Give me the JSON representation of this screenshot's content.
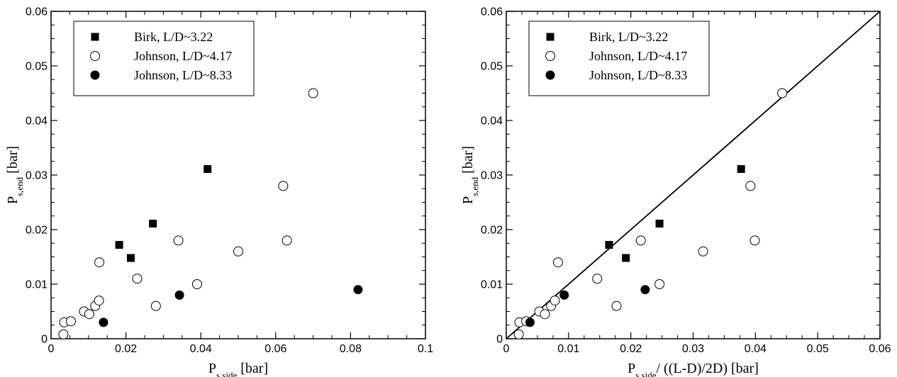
{
  "chart_data": [
    {
      "type": "scatter",
      "xlabel": {
        "base": "P",
        "sub": "s,side",
        "rest": " [bar]"
      },
      "ylabel": {
        "base": "P",
        "sub": "s,end",
        "rest": " [bar]"
      },
      "xlim": [
        0,
        0.1
      ],
      "ylim": [
        0,
        0.06
      ],
      "xticks": [
        "0",
        "0.02",
        "0.04",
        "0.06",
        "0.08",
        "0.1"
      ],
      "yticks": [
        "0",
        "0.01",
        "0.02",
        "0.03",
        "0.04",
        "0.05",
        "0.06"
      ],
      "legend_position": "top-left",
      "series": [
        {
          "name": "Birk, L/D~3.22",
          "marker": "square-filled",
          "x": [
            0.0182,
            0.0213,
            0.0272,
            0.0418
          ],
          "y": [
            0.0172,
            0.0148,
            0.0211,
            0.0311
          ]
        },
        {
          "name": "Johnson, L/D~4.17",
          "marker": "circle-open",
          "x": [
            0.0033,
            0.0035,
            0.0053,
            0.0088,
            0.0102,
            0.0118,
            0.0128,
            0.0129,
            0.023,
            0.028,
            0.034,
            0.039,
            0.05,
            0.062,
            0.063,
            0.07
          ],
          "y": [
            0.0008,
            0.003,
            0.0032,
            0.005,
            0.0045,
            0.006,
            0.007,
            0.014,
            0.011,
            0.006,
            0.018,
            0.01,
            0.016,
            0.028,
            0.018,
            0.045
          ]
        },
        {
          "name": "Johnson, L/D~8.33",
          "marker": "circle-filled",
          "x": [
            0.014,
            0.0343,
            0.082
          ],
          "y": [
            0.003,
            0.008,
            0.009
          ]
        }
      ]
    },
    {
      "type": "scatter",
      "xlabel": {
        "base": "P",
        "sub": "s,side",
        "rest": "/ ((L-D)/2D) [bar]"
      },
      "ylabel": {
        "base": "P",
        "sub": "s,end",
        "rest": " [bar]"
      },
      "xlim": [
        0,
        0.06
      ],
      "ylim": [
        0,
        0.06
      ],
      "xticks": [
        "0",
        "0.01",
        "0.02",
        "0.03",
        "0.04",
        "0.05",
        "0.06"
      ],
      "yticks": [
        "0",
        "0.01",
        "0.02",
        "0.03",
        "0.04",
        "0.05",
        "0.06"
      ],
      "legend_position": "top-left",
      "reference_line": {
        "x": [
          0,
          0.06
        ],
        "y": [
          0,
          0.06
        ]
      },
      "series": [
        {
          "name": "Birk, L/D~3.22",
          "marker": "square-filled",
          "x": [
            0.0165,
            0.0192,
            0.0246,
            0.0377
          ],
          "y": [
            0.0172,
            0.0148,
            0.0211,
            0.0311
          ]
        },
        {
          "name": "Johnson, L/D~4.17",
          "marker": "circle-open",
          "x": [
            0.002,
            0.0021,
            0.0032,
            0.0053,
            0.0062,
            0.0072,
            0.0078,
            0.0083,
            0.0146,
            0.0177,
            0.0216,
            0.0246,
            0.0316,
            0.0392,
            0.0399,
            0.0443
          ],
          "y": [
            0.0008,
            0.003,
            0.0032,
            0.005,
            0.0045,
            0.006,
            0.007,
            0.014,
            0.011,
            0.006,
            0.018,
            0.01,
            0.016,
            0.028,
            0.018,
            0.045
          ]
        },
        {
          "name": "Johnson, L/D~8.33",
          "marker": "circle-filled",
          "x": [
            0.0038,
            0.0093,
            0.0223
          ],
          "y": [
            0.003,
            0.008,
            0.009
          ]
        }
      ]
    }
  ]
}
